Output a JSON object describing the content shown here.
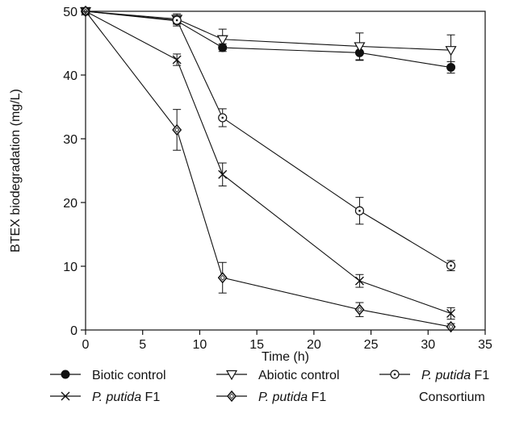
{
  "chart_data": {
    "type": "line",
    "xlabel": "Time (h)",
    "ylabel": "BTEX biodegradation (mg/L)",
    "xlim": [
      0,
      35
    ],
    "ylim": [
      0,
      50
    ],
    "xticks": [
      0,
      5,
      10,
      15,
      20,
      25,
      30,
      35
    ],
    "yticks": [
      0,
      10,
      20,
      30,
      40,
      50
    ],
    "grid": false,
    "legend_position": "bottom",
    "series": [
      {
        "name": "Biotic control",
        "marker": "filled-circle",
        "x": [
          0,
          8,
          12,
          24,
          32
        ],
        "y": [
          50,
          48.5,
          44.3,
          43.5,
          41.2
        ],
        "err": [
          0.3,
          0.8,
          0.6,
          1.2,
          0.9
        ]
      },
      {
        "name": "Abiotic control",
        "marker": "open-triangle-down",
        "x": [
          0,
          8,
          12,
          24,
          32
        ],
        "y": [
          50,
          48.8,
          45.6,
          44.5,
          43.9
        ],
        "err": [
          0.3,
          0.8,
          1.6,
          2.1,
          2.4
        ]
      },
      {
        "name": "P. putida F1",
        "name_italic": "P. putida",
        "name_suffix": " F1",
        "marker": "open-circle-dot",
        "x": [
          0,
          8,
          12,
          24,
          32
        ],
        "y": [
          50,
          48.6,
          33.3,
          18.7,
          10.1
        ],
        "err": [
          0.3,
          0.6,
          1.4,
          2.1,
          0.8
        ]
      },
      {
        "name": "P. putida F1",
        "name_italic": "P. putida",
        "name_suffix": " F1",
        "marker": "x",
        "x": [
          0,
          8,
          12,
          24,
          32
        ],
        "y": [
          50,
          42.4,
          24.4,
          7.7,
          2.6
        ],
        "err": [
          0.3,
          0.9,
          1.8,
          1.0,
          0.9
        ]
      },
      {
        "name": "P. putida F1 Consortium",
        "name_italic": "P. putida",
        "name_suffix": " F1",
        "name_line2": "Consortium",
        "marker": "open-diamond",
        "x": [
          0,
          8,
          12,
          24,
          32
        ],
        "y": [
          50,
          31.4,
          8.2,
          3.2,
          0.5
        ],
        "err": [
          0.3,
          3.2,
          2.4,
          1.1,
          0.5
        ]
      }
    ]
  }
}
